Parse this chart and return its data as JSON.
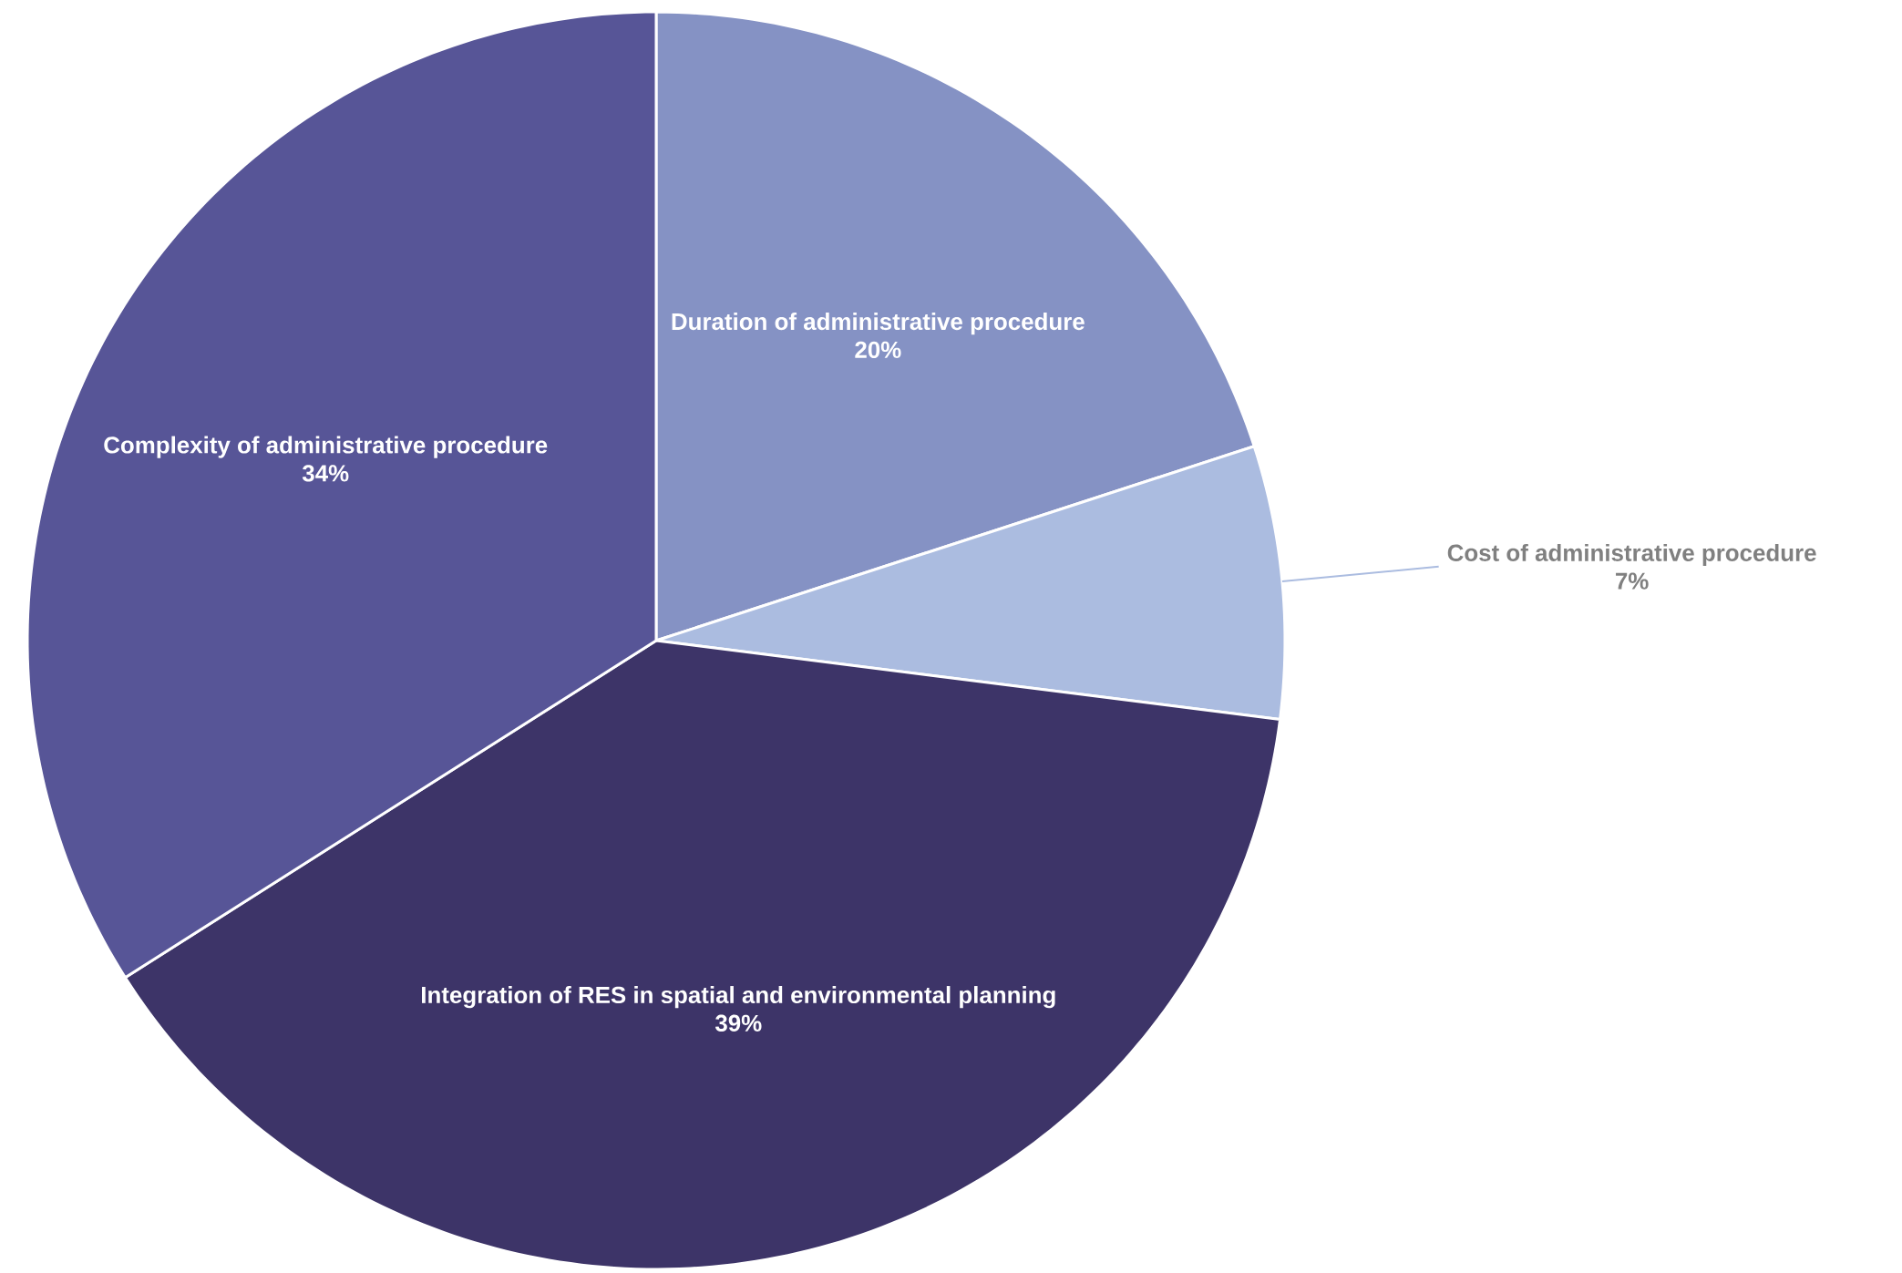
{
  "chart_data": {
    "type": "pie",
    "categories": [
      "Duration of administrative procedure",
      "Cost of administrative procedure",
      "Integration of RES in spatial and environmental planning",
      "Complexity of administrative procedure"
    ],
    "values": [
      20,
      7,
      39,
      34
    ],
    "value_labels": [
      "20%",
      "7%",
      "39%",
      "34%"
    ],
    "colors": [
      "#8592c4",
      "#abbce0",
      "#3d3468",
      "#575597"
    ]
  }
}
